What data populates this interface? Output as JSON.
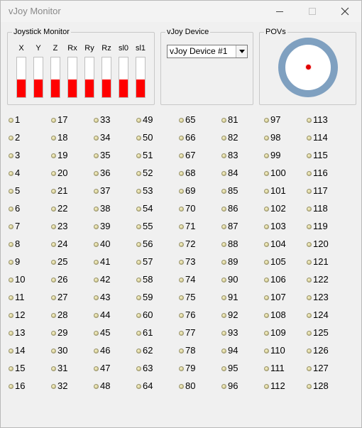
{
  "window": {
    "title": "vJoy Monitor"
  },
  "joystick_monitor": {
    "label": "Joystick Monitor",
    "axes": [
      {
        "name": "X",
        "level": 0.45
      },
      {
        "name": "Y",
        "level": 0.45
      },
      {
        "name": "Z",
        "level": 0.45
      },
      {
        "name": "Rx",
        "level": 0.45
      },
      {
        "name": "Ry",
        "level": 0.45
      },
      {
        "name": "Rz",
        "level": 0.45
      },
      {
        "name": "sl0",
        "level": 0.45
      },
      {
        "name": "sl1",
        "level": 0.45
      }
    ],
    "fill_color": "#ff0000"
  },
  "vjoy_device": {
    "label": "vJoy Device",
    "selected": "vJoy Device #1"
  },
  "povs": {
    "label": "POVs",
    "ring_color": "#7fa0c0",
    "dot_color": "#e00000"
  },
  "buttons": {
    "count": 128,
    "rows_per_column": 16,
    "labels": [
      "1",
      "2",
      "3",
      "4",
      "5",
      "6",
      "7",
      "8",
      "9",
      "10",
      "11",
      "12",
      "13",
      "14",
      "15",
      "16",
      "17",
      "18",
      "19",
      "20",
      "21",
      "22",
      "23",
      "24",
      "25",
      "26",
      "27",
      "28",
      "29",
      "30",
      "31",
      "32",
      "33",
      "34",
      "35",
      "36",
      "37",
      "38",
      "39",
      "40",
      "41",
      "42",
      "43",
      "44",
      "45",
      "46",
      "47",
      "48",
      "49",
      "50",
      "51",
      "52",
      "53",
      "54",
      "55",
      "56",
      "57",
      "58",
      "59",
      "60",
      "61",
      "62",
      "63",
      "64",
      "65",
      "66",
      "67",
      "68",
      "69",
      "70",
      "71",
      "72",
      "73",
      "74",
      "75",
      "76",
      "77",
      "78",
      "79",
      "80",
      "81",
      "82",
      "83",
      "84",
      "85",
      "86",
      "87",
      "88",
      "89",
      "90",
      "91",
      "92",
      "93",
      "94",
      "95",
      "96",
      "97",
      "98",
      "99",
      "100",
      "101",
      "102",
      "103",
      "104",
      "105",
      "106",
      "107",
      "108",
      "109",
      "110",
      "111",
      "112",
      "113",
      "114",
      "115",
      "116",
      "117",
      "118",
      "119",
      "120",
      "121",
      "122",
      "123",
      "124",
      "125",
      "126",
      "127",
      "128"
    ]
  }
}
